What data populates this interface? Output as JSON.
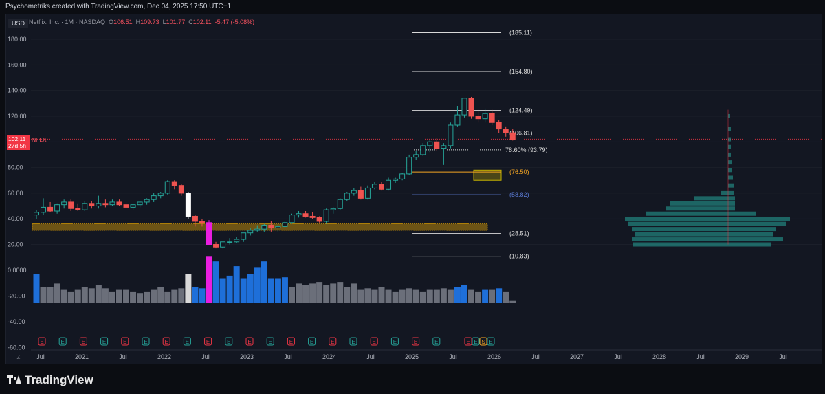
{
  "header": {
    "caption": "Psychometriks created with TradingView.com, Dec 04, 2025 17:50 UTC+1"
  },
  "legend": {
    "symbol_line": "Netflix, Inc. · 1M · NASDAQ",
    "o_label": "O",
    "o_value": "106.51",
    "h_label": "H",
    "h_value": "109.73",
    "l_label": "L",
    "l_value": "101.77",
    "c_label": "C",
    "c_value": "102.11",
    "change": "-5.47 (-5.08%)"
  },
  "currency_label": "USD",
  "last_price": {
    "value": "102.11",
    "countdown": "27d 5h",
    "symbol": "NFLX"
  },
  "footer": {
    "brand": "TradingView"
  },
  "colors": {
    "bull": "#26a69a",
    "bear": "#ef5350",
    "vol_blue": "#1e6fd9",
    "vol_gray": "#6b6f7a",
    "vol_magenta": "#e91ee0",
    "vol_white": "#d9d9d9",
    "zone_orange": "#b8860b",
    "fib_gray": "#d9d9d9",
    "fib_orange": "#f5a623",
    "fib_blue": "#5b7bd5"
  },
  "chart_data": {
    "type": "candlestick",
    "interval": "1M",
    "price_axis": {
      "min": 0,
      "max": 190,
      "ticks": [
        "180.00",
        "160.00",
        "140.00",
        "120.00",
        "100.00",
        "80.00",
        "60.00",
        "40.00",
        "20.00"
      ]
    },
    "volume_axis": {
      "ticks": [
        "0.0000",
        "-20.00",
        "-40.00",
        "-60.00"
      ]
    },
    "time_axis_labels": [
      "Jul",
      "2021",
      "Jul",
      "2022",
      "Jul",
      "2023",
      "Jul",
      "2024",
      "Jul",
      "2025",
      "Jul",
      "2026",
      "Jul",
      "2027",
      "Jul",
      "2028",
      "Jul",
      "2029",
      "Jul"
    ],
    "time_axis_corner": "Z",
    "candles": [
      {
        "o": 43,
        "h": 47,
        "l": 40,
        "c": 45
      },
      {
        "o": 45,
        "h": 56,
        "l": 43,
        "c": 49
      },
      {
        "o": 49,
        "h": 53,
        "l": 45,
        "c": 46
      },
      {
        "o": 46,
        "h": 52,
        "l": 44,
        "c": 51
      },
      {
        "o": 51,
        "h": 55,
        "l": 48,
        "c": 53
      },
      {
        "o": 53,
        "h": 55,
        "l": 46,
        "c": 48
      },
      {
        "o": 48,
        "h": 52,
        "l": 46,
        "c": 47
      },
      {
        "o": 47,
        "h": 54,
        "l": 46,
        "c": 52
      },
      {
        "o": 52,
        "h": 54,
        "l": 48,
        "c": 50
      },
      {
        "o": 50,
        "h": 58,
        "l": 48,
        "c": 52
      },
      {
        "o": 52,
        "h": 55,
        "l": 49,
        "c": 51
      },
      {
        "o": 51,
        "h": 55,
        "l": 50,
        "c": 53
      },
      {
        "o": 53,
        "h": 55,
        "l": 50,
        "c": 51
      },
      {
        "o": 51,
        "h": 53,
        "l": 48,
        "c": 49
      },
      {
        "o": 49,
        "h": 52,
        "l": 47,
        "c": 51
      },
      {
        "o": 51,
        "h": 54,
        "l": 49,
        "c": 53
      },
      {
        "o": 53,
        "h": 56,
        "l": 51,
        "c": 55
      },
      {
        "o": 55,
        "h": 60,
        "l": 53,
        "c": 58
      },
      {
        "o": 58,
        "h": 61,
        "l": 56,
        "c": 60
      },
      {
        "o": 60,
        "h": 70,
        "l": 59,
        "c": 69
      },
      {
        "o": 69,
        "h": 70,
        "l": 63,
        "c": 66
      },
      {
        "o": 66,
        "h": 67,
        "l": 58,
        "c": 60
      },
      {
        "o": 60,
        "h": 61,
        "l": 40,
        "c": 42
      },
      {
        "o": 42,
        "h": 43,
        "l": 34,
        "c": 38
      },
      {
        "o": 38,
        "h": 40,
        "l": 34,
        "c": 37
      },
      {
        "o": 37,
        "h": 39,
        "l": 20,
        "c": 20
      },
      {
        "o": 20,
        "h": 22,
        "l": 17,
        "c": 18
      },
      {
        "o": 18,
        "h": 22,
        "l": 17,
        "c": 22
      },
      {
        "o": 22,
        "h": 25,
        "l": 20,
        "c": 22
      },
      {
        "o": 22,
        "h": 26,
        "l": 21,
        "c": 24
      },
      {
        "o": 24,
        "h": 29,
        "l": 22,
        "c": 29
      },
      {
        "o": 29,
        "h": 33,
        "l": 27,
        "c": 31
      },
      {
        "o": 31,
        "h": 35,
        "l": 30,
        "c": 32
      },
      {
        "o": 32,
        "h": 36,
        "l": 30,
        "c": 35
      },
      {
        "o": 35,
        "h": 38,
        "l": 30,
        "c": 33
      },
      {
        "o": 33,
        "h": 36,
        "l": 30,
        "c": 34
      },
      {
        "o": 34,
        "h": 38,
        "l": 33,
        "c": 37
      },
      {
        "o": 37,
        "h": 44,
        "l": 36,
        "c": 43
      },
      {
        "o": 43,
        "h": 46,
        "l": 41,
        "c": 44
      },
      {
        "o": 44,
        "h": 46,
        "l": 41,
        "c": 42
      },
      {
        "o": 42,
        "h": 45,
        "l": 40,
        "c": 41
      },
      {
        "o": 41,
        "h": 42,
        "l": 37,
        "c": 38
      },
      {
        "o": 38,
        "h": 48,
        "l": 36,
        "c": 47
      },
      {
        "o": 47,
        "h": 49,
        "l": 44,
        "c": 48
      },
      {
        "o": 48,
        "h": 56,
        "l": 47,
        "c": 55
      },
      {
        "o": 55,
        "h": 61,
        "l": 54,
        "c": 60
      },
      {
        "o": 60,
        "h": 64,
        "l": 58,
        "c": 62
      },
      {
        "o": 62,
        "h": 65,
        "l": 55,
        "c": 56
      },
      {
        "o": 56,
        "h": 66,
        "l": 55,
        "c": 64
      },
      {
        "o": 64,
        "h": 69,
        "l": 63,
        "c": 67
      },
      {
        "o": 67,
        "h": 69,
        "l": 62,
        "c": 63
      },
      {
        "o": 63,
        "h": 72,
        "l": 62,
        "c": 70
      },
      {
        "o": 70,
        "h": 72,
        "l": 68,
        "c": 71
      },
      {
        "o": 71,
        "h": 76,
        "l": 70,
        "c": 75
      },
      {
        "o": 75,
        "h": 90,
        "l": 74,
        "c": 88
      },
      {
        "o": 88,
        "h": 93,
        "l": 86,
        "c": 90
      },
      {
        "o": 90,
        "h": 99,
        "l": 89,
        "c": 97
      },
      {
        "o": 97,
        "h": 102,
        "l": 92,
        "c": 100
      },
      {
        "o": 100,
        "h": 103,
        "l": 93,
        "c": 95
      },
      {
        "o": 95,
        "h": 99,
        "l": 82,
        "c": 97
      },
      {
        "o": 97,
        "h": 115,
        "l": 95,
        "c": 113
      },
      {
        "o": 113,
        "h": 128,
        "l": 112,
        "c": 121
      },
      {
        "o": 121,
        "h": 134,
        "l": 119,
        "c": 134
      },
      {
        "o": 134,
        "h": 135,
        "l": 118,
        "c": 120
      },
      {
        "o": 120,
        "h": 125,
        "l": 115,
        "c": 118
      },
      {
        "o": 118,
        "h": 126,
        "l": 115,
        "c": 122
      },
      {
        "o": 122,
        "h": 125,
        "l": 113,
        "c": 115
      },
      {
        "o": 115,
        "h": 117,
        "l": 107,
        "c": 110
      },
      {
        "o": 110,
        "h": 112,
        "l": 104,
        "c": 107
      },
      {
        "o": 107,
        "h": 110,
        "l": 101,
        "c": 102
      }
    ],
    "special_candles": [
      {
        "index": 22,
        "color": "#ffffff"
      },
      {
        "index": 25,
        "color": "#e91ee0"
      }
    ],
    "volume": [
      {
        "v": 18,
        "c": "b"
      },
      {
        "v": 10,
        "c": "g"
      },
      {
        "v": 10,
        "c": "g"
      },
      {
        "v": 12,
        "c": "g"
      },
      {
        "v": 8,
        "c": "g"
      },
      {
        "v": 7,
        "c": "g"
      },
      {
        "v": 8,
        "c": "g"
      },
      {
        "v": 10,
        "c": "g"
      },
      {
        "v": 9,
        "c": "g"
      },
      {
        "v": 11,
        "c": "g"
      },
      {
        "v": 9,
        "c": "g"
      },
      {
        "v": 7,
        "c": "g"
      },
      {
        "v": 8,
        "c": "g"
      },
      {
        "v": 8,
        "c": "g"
      },
      {
        "v": 7,
        "c": "g"
      },
      {
        "v": 6,
        "c": "g"
      },
      {
        "v": 7,
        "c": "g"
      },
      {
        "v": 8,
        "c": "g"
      },
      {
        "v": 10,
        "c": "g"
      },
      {
        "v": 7,
        "c": "g"
      },
      {
        "v": 8,
        "c": "g"
      },
      {
        "v": 9,
        "c": "g"
      },
      {
        "v": 18,
        "c": "w"
      },
      {
        "v": 10,
        "c": "b"
      },
      {
        "v": 9,
        "c": "b"
      },
      {
        "v": 29,
        "c": "m"
      },
      {
        "v": 26,
        "c": "b"
      },
      {
        "v": 15,
        "c": "b"
      },
      {
        "v": 17,
        "c": "b"
      },
      {
        "v": 23,
        "c": "b"
      },
      {
        "v": 15,
        "c": "b"
      },
      {
        "v": 18,
        "c": "b"
      },
      {
        "v": 22,
        "c": "b"
      },
      {
        "v": 26,
        "c": "b"
      },
      {
        "v": 15,
        "c": "b"
      },
      {
        "v": 15,
        "c": "b"
      },
      {
        "v": 16,
        "c": "b"
      },
      {
        "v": 10,
        "c": "g"
      },
      {
        "v": 12,
        "c": "g"
      },
      {
        "v": 11,
        "c": "g"
      },
      {
        "v": 12,
        "c": "g"
      },
      {
        "v": 13,
        "c": "g"
      },
      {
        "v": 11,
        "c": "g"
      },
      {
        "v": 12,
        "c": "g"
      },
      {
        "v": 13,
        "c": "g"
      },
      {
        "v": 10,
        "c": "g"
      },
      {
        "v": 12,
        "c": "g"
      },
      {
        "v": 8,
        "c": "g"
      },
      {
        "v": 9,
        "c": "g"
      },
      {
        "v": 8,
        "c": "g"
      },
      {
        "v": 10,
        "c": "g"
      },
      {
        "v": 8,
        "c": "g"
      },
      {
        "v": 7,
        "c": "g"
      },
      {
        "v": 8,
        "c": "g"
      },
      {
        "v": 9,
        "c": "g"
      },
      {
        "v": 8,
        "c": "g"
      },
      {
        "v": 7,
        "c": "g"
      },
      {
        "v": 8,
        "c": "g"
      },
      {
        "v": 8,
        "c": "g"
      },
      {
        "v": 9,
        "c": "g"
      },
      {
        "v": 8,
        "c": "g"
      },
      {
        "v": 10,
        "c": "b"
      },
      {
        "v": 11,
        "c": "b"
      },
      {
        "v": 8,
        "c": "g"
      },
      {
        "v": 7,
        "c": "g"
      },
      {
        "v": 8,
        "c": "b"
      },
      {
        "v": 8,
        "c": "g"
      },
      {
        "v": 9,
        "c": "b"
      },
      {
        "v": 7,
        "c": "g"
      },
      {
        "v": 1,
        "c": "g"
      }
    ],
    "fib_levels": [
      {
        "label": "(185.11)",
        "price": 185.11,
        "color": "#d9d9d9"
      },
      {
        "label": "(154.80)",
        "price": 154.8,
        "color": "#d9d9d9"
      },
      {
        "label": "(124.49)",
        "price": 124.49,
        "color": "#d9d9d9"
      },
      {
        "label": "(106.81)",
        "price": 106.81,
        "color": "#d9d9d9"
      },
      {
        "label": "78.60% (93.79)",
        "price": 93.79,
        "color": "#d9d9d9",
        "dotted": true
      },
      {
        "label": "(76.50)",
        "price": 76.5,
        "color": "#f5a623"
      },
      {
        "label": "(58.82)",
        "price": 58.82,
        "color": "#5b7bd5"
      },
      {
        "label": "(28.51)",
        "price": 28.51,
        "color": "#d9d9d9"
      },
      {
        "label": "(10.83)",
        "price": 10.83,
        "color": "#d9d9d9"
      }
    ],
    "zones": [
      {
        "from": 31,
        "to": 36,
        "color": "#b8860b"
      },
      {
        "from": 70,
        "to": 78,
        "color": "#c8b400"
      }
    ],
    "earnings_markers": [
      "E",
      "E",
      "E",
      "E",
      "E",
      "E",
      "E",
      "E",
      "E",
      "E",
      "E",
      "E",
      "E",
      "E",
      "E",
      "E",
      "E",
      "E",
      "E",
      "E",
      "E",
      "E",
      "S",
      "E"
    ]
  }
}
